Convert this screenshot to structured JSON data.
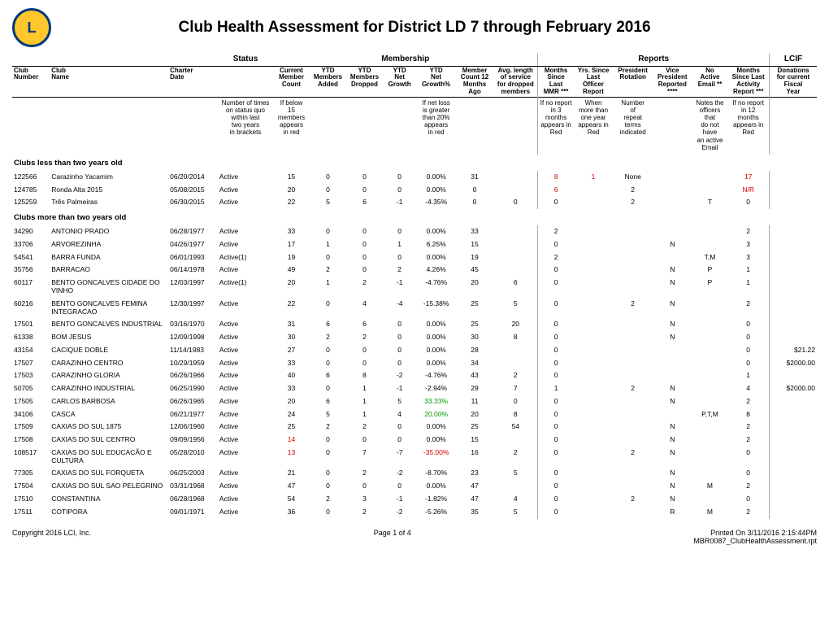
{
  "title": "Club Health Assessment for District LD 7 through February 2016",
  "groupHeaders": {
    "status": "Status",
    "membership": "Membership",
    "reports": "Reports",
    "lcif": "LCIF"
  },
  "colHeaders": [
    "Club\nNumber",
    "Club\nName",
    "Charter\nDate",
    "",
    "Current\nMember\nCount",
    "YTD\nMembers\nAdded",
    "YTD\nMembers\nDropped",
    "YTD\nNet\nGrowth",
    "YTD\nNet\nGrowth%",
    "Member\nCount 12\nMonths\nAgo",
    "Avg. length\nof service\nfor dropped\nmembers",
    "Months\nSince\nLast\nMMR ***",
    "Yrs. Since\nLast\nOfficer\nReport",
    "President\nRotation",
    "Vice\nPresident\nReported\n****",
    "No\nActive\nEmail **",
    "Months\nSince Last\nActivity\nReport ***",
    "Donations\nfor current\nFiscal\nYear"
  ],
  "notes": {
    "status": "Number of times\non status quo\nwithin last\ntwo years\nin brackets",
    "count": "If below\n15\nmembers\nappears\nin red",
    "growth": "If net loss\nis greater\nthan 20%\nappears\nin red",
    "mmr": "If no report\nin 3\nmonths\nappears in\nRed",
    "officer": "When\nmore than\none year\nappears in\nRed",
    "rotation": "Number\nof\nrepeat\nterms\nindicated",
    "email": "Notes the\nofficers that\ndo not have\nan active\nEmail",
    "activity": "If no report\nin 12\nmonths\nappears in\nRed"
  },
  "section1": "Clubs less than two years old",
  "section2": "Clubs more than two years old",
  "rows1": [
    {
      "num": "122566",
      "name": "Carazinho Yacamim",
      "charter": "06/20/2014",
      "status": "Active",
      "count": "15",
      "added": "0",
      "dropped": "0",
      "net": "0",
      "pct": "0.00%",
      "ago": "31",
      "avg": "",
      "mmr": "8",
      "mmrRed": true,
      "officer": "1",
      "officerRed": true,
      "rot": "None",
      "vp": "",
      "email": "",
      "act": "17",
      "actRed": true,
      "don": ""
    },
    {
      "num": "124785",
      "name": "Ronda Alta 2015",
      "charter": "05/08/2015",
      "status": "Active",
      "count": "20",
      "added": "0",
      "dropped": "0",
      "net": "0",
      "pct": "0.00%",
      "ago": "0",
      "avg": "",
      "mmr": "6",
      "mmrRed": true,
      "officer": "",
      "rot": "2",
      "vp": "",
      "email": "",
      "act": "N/R",
      "actRed": true,
      "don": ""
    },
    {
      "num": "125259",
      "name": "Três Palmeiras",
      "charter": "06/30/2015",
      "status": "Active",
      "count": "22",
      "added": "5",
      "dropped": "6",
      "net": "-1",
      "pct": "-4.35%",
      "ago": "0",
      "avg": "0",
      "mmr": "0",
      "officer": "",
      "rot": "2",
      "vp": "",
      "email": "T",
      "act": "0",
      "don": ""
    }
  ],
  "rows2": [
    {
      "num": "34290",
      "name": "ANTONIO PRADO",
      "charter": "06/28/1977",
      "status": "Active",
      "count": "33",
      "added": "0",
      "dropped": "0",
      "net": "0",
      "pct": "0.00%",
      "ago": "33",
      "avg": "",
      "mmr": "2",
      "officer": "",
      "rot": "",
      "vp": "",
      "email": "",
      "act": "2",
      "don": ""
    },
    {
      "num": "33706",
      "name": "ARVOREZINHA",
      "charter": "04/26/1977",
      "status": "Active",
      "count": "17",
      "added": "1",
      "dropped": "0",
      "net": "1",
      "pct": "6.25%",
      "ago": "15",
      "avg": "",
      "mmr": "0",
      "officer": "",
      "rot": "",
      "vp": "N",
      "email": "",
      "act": "3",
      "don": ""
    },
    {
      "num": "54541",
      "name": "BARRA FUNDA",
      "charter": "06/01/1993",
      "status": "Active(1)",
      "count": "19",
      "added": "0",
      "dropped": "0",
      "net": "0",
      "pct": "0.00%",
      "ago": "19",
      "avg": "",
      "mmr": "2",
      "officer": "",
      "rot": "",
      "vp": "",
      "email": "T,M",
      "act": "3",
      "don": ""
    },
    {
      "num": "35756",
      "name": "BARRACAO",
      "charter": "06/14/1978",
      "status": "Active",
      "count": "49",
      "added": "2",
      "dropped": "0",
      "net": "2",
      "pct": "4.26%",
      "ago": "45",
      "avg": "",
      "mmr": "0",
      "officer": "",
      "rot": "",
      "vp": "N",
      "email": "P",
      "act": "1",
      "don": ""
    },
    {
      "num": "60117",
      "name": "BENTO GONCALVES CIDADE DO VINHO",
      "charter": "12/03/1997",
      "status": "Active(1)",
      "count": "20",
      "added": "1",
      "dropped": "2",
      "net": "-1",
      "pct": "-4.76%",
      "ago": "20",
      "avg": "6",
      "mmr": "0",
      "officer": "",
      "rot": "",
      "vp": "N",
      "email": "P",
      "act": "1",
      "don": ""
    },
    {
      "num": "60216",
      "name": "BENTO GONCALVES FEMINA INTEGRACAO",
      "charter": "12/30/1997",
      "status": "Active",
      "count": "22",
      "added": "0",
      "dropped": "4",
      "net": "-4",
      "pct": "-15.38%",
      "ago": "25",
      "avg": "5",
      "mmr": "0",
      "officer": "",
      "rot": "2",
      "vp": "N",
      "email": "",
      "act": "2",
      "don": ""
    },
    {
      "num": "17501",
      "name": "BENTO GONCALVES INDUSTRIAL",
      "charter": "03/16/1970",
      "status": "Active",
      "count": "31",
      "added": "6",
      "dropped": "6",
      "net": "0",
      "pct": "0.00%",
      "ago": "25",
      "avg": "20",
      "mmr": "0",
      "officer": "",
      "rot": "",
      "vp": "N",
      "email": "",
      "act": "0",
      "don": ""
    },
    {
      "num": "61338",
      "name": "BOM JESUS",
      "charter": "12/09/1998",
      "status": "Active",
      "count": "30",
      "added": "2",
      "dropped": "2",
      "net": "0",
      "pct": "0.00%",
      "ago": "30",
      "avg": "8",
      "mmr": "0",
      "officer": "",
      "rot": "",
      "vp": "N",
      "email": "",
      "act": "0",
      "don": ""
    },
    {
      "num": "43154",
      "name": "CACIQUE DOBLE",
      "charter": "11/14/1983",
      "status": "Active",
      "count": "27",
      "added": "0",
      "dropped": "0",
      "net": "0",
      "pct": "0.00%",
      "ago": "28",
      "avg": "",
      "mmr": "0",
      "officer": "",
      "rot": "",
      "vp": "",
      "email": "",
      "act": "0",
      "don": "$21.22"
    },
    {
      "num": "17507",
      "name": "CARAZINHO CENTRO",
      "charter": "10/29/1959",
      "status": "Active",
      "count": "33",
      "added": "0",
      "dropped": "0",
      "net": "0",
      "pct": "0.00%",
      "ago": "34",
      "avg": "",
      "mmr": "0",
      "officer": "",
      "rot": "",
      "vp": "",
      "email": "",
      "act": "0",
      "don": "$2000.00"
    },
    {
      "num": "17503",
      "name": "CARAZINHO GLORIA",
      "charter": "06/26/1966",
      "status": "Active",
      "count": "40",
      "added": "6",
      "dropped": "8",
      "net": "-2",
      "pct": "-4.76%",
      "ago": "43",
      "avg": "2",
      "mmr": "0",
      "officer": "",
      "rot": "",
      "vp": "",
      "email": "",
      "act": "1",
      "don": ""
    },
    {
      "num": "50705",
      "name": "CARAZINHO INDUSTRIAL",
      "charter": "06/25/1990",
      "status": "Active",
      "count": "33",
      "added": "0",
      "dropped": "1",
      "net": "-1",
      "pct": "-2.94%",
      "ago": "29",
      "avg": "7",
      "mmr": "1",
      "officer": "",
      "rot": "2",
      "vp": "N",
      "email": "",
      "act": "4",
      "don": "$2000.00"
    },
    {
      "num": "17505",
      "name": "CARLOS BARBOSA",
      "charter": "06/26/1965",
      "status": "Active",
      "count": "20",
      "added": "6",
      "dropped": "1",
      "net": "5",
      "pct": "33.33%",
      "pctGreen": true,
      "ago": "11",
      "avg": "0",
      "mmr": "0",
      "officer": "",
      "rot": "",
      "vp": "N",
      "email": "",
      "act": "2",
      "don": ""
    },
    {
      "num": "34106",
      "name": "CASCA",
      "charter": "06/21/1977",
      "status": "Active",
      "count": "24",
      "added": "5",
      "dropped": "1",
      "net": "4",
      "pct": "20.00%",
      "pctGreen": true,
      "ago": "20",
      "avg": "8",
      "mmr": "0",
      "officer": "",
      "rot": "",
      "vp": "",
      "email": "P,T,M",
      "act": "8",
      "don": ""
    },
    {
      "num": "17509",
      "name": "CAXIAS DO SUL 1875",
      "charter": "12/06/1960",
      "status": "Active",
      "count": "25",
      "added": "2",
      "dropped": "2",
      "net": "0",
      "pct": "0.00%",
      "ago": "25",
      "avg": "54",
      "mmr": "0",
      "officer": "",
      "rot": "",
      "vp": "N",
      "email": "",
      "act": "2",
      "don": ""
    },
    {
      "num": "17508",
      "name": "CAXIAS DO SUL CENTRO",
      "charter": "09/09/1956",
      "status": "Active",
      "count": "14",
      "countRed": true,
      "added": "0",
      "dropped": "0",
      "net": "0",
      "pct": "0.00%",
      "ago": "15",
      "avg": "",
      "mmr": "0",
      "officer": "",
      "rot": "",
      "vp": "N",
      "email": "",
      "act": "2",
      "don": ""
    },
    {
      "num": "108517",
      "name": "CAXIAS DO SUL EDUCACÃO E CULTURA",
      "charter": "05/28/2010",
      "status": "Active",
      "count": "13",
      "countRed": true,
      "added": "0",
      "dropped": "7",
      "net": "-7",
      "pct": "-35.00%",
      "pctRed": true,
      "ago": "16",
      "avg": "2",
      "mmr": "0",
      "officer": "",
      "rot": "2",
      "vp": "N",
      "email": "",
      "act": "0",
      "don": ""
    },
    {
      "num": "77305",
      "name": "CAXIAS DO SUL FORQUETA",
      "charter": "06/25/2003",
      "status": "Active",
      "count": "21",
      "added": "0",
      "dropped": "2",
      "net": "-2",
      "pct": "-8.70%",
      "ago": "23",
      "avg": "5",
      "mmr": "0",
      "officer": "",
      "rot": "",
      "vp": "N",
      "email": "",
      "act": "0",
      "don": ""
    },
    {
      "num": "17504",
      "name": "CAXIAS DO SUL SAO PELEGRINO",
      "charter": "03/31/1968",
      "status": "Active",
      "count": "47",
      "added": "0",
      "dropped": "0",
      "net": "0",
      "pct": "0.00%",
      "ago": "47",
      "avg": "",
      "mmr": "0",
      "officer": "",
      "rot": "",
      "vp": "N",
      "email": "M",
      "act": "2",
      "don": ""
    },
    {
      "num": "17510",
      "name": "CONSTANTINA",
      "charter": "06/28/1968",
      "status": "Active",
      "count": "54",
      "added": "2",
      "dropped": "3",
      "net": "-1",
      "pct": "-1.82%",
      "ago": "47",
      "avg": "4",
      "mmr": "0",
      "officer": "",
      "rot": "2",
      "vp": "N",
      "email": "",
      "act": "0",
      "don": ""
    },
    {
      "num": "17511",
      "name": "COTIPORA",
      "charter": "09/01/1971",
      "status": "Active",
      "count": "36",
      "added": "0",
      "dropped": "2",
      "net": "-2",
      "pct": "-5.26%",
      "ago": "35",
      "avg": "5",
      "mmr": "0",
      "officer": "",
      "rot": "",
      "vp": "R",
      "email": "M",
      "act": "2",
      "don": ""
    }
  ],
  "footer": {
    "left": "Copyright 2016 LCI, Inc.",
    "center": "Page 1 of 4",
    "right1": "Printed On 3/11/2016  2:15:44PM",
    "right2": "MBR0087_ClubHealthAssessment.rpt"
  },
  "cols": {
    "widths": [
      "38",
      "120",
      "50",
      "56",
      "37",
      "37",
      "37",
      "34",
      "40",
      "38",
      "45",
      "36",
      "40",
      "40",
      "40",
      "36",
      "42",
      "48"
    ]
  }
}
